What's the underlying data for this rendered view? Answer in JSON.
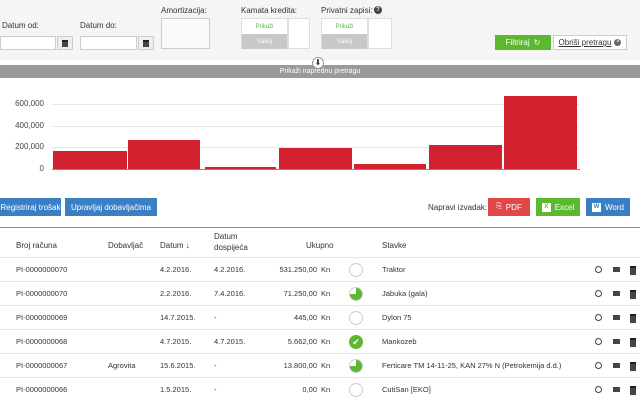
{
  "filters": {
    "date_from_label": "Datum od:",
    "date_to_label": "Datum do:",
    "amortization_label": "Amortizacija:",
    "interest_label": "Kamata kredita:",
    "private_label": "Privatni zapisi:",
    "show": "Prikaži",
    "hide": "Sakrij",
    "filter_button": "Filtriraj",
    "clear_button": "Obriši pretragu",
    "advanced_search": "Prikaži naprednu pretragu"
  },
  "chart_data": {
    "type": "bar",
    "yticks": [
      "600,000",
      "400,000",
      "200,000",
      "0"
    ],
    "ylim": [
      0,
      700000
    ],
    "values": [
      150000,
      238000,
      18000,
      168000,
      38000,
      195000,
      598000
    ]
  },
  "toolbar": {
    "register_cost": "Registriraj trošak",
    "manage_suppliers": "Upravljaj dobavljačima",
    "export_label": "Napravi izvadak:",
    "pdf": "PDF",
    "excel": "Excel",
    "word": "Word",
    "accent_green": "#5cb82e",
    "accent_blue": "#3a7fc4",
    "accent_red": "#e04848"
  },
  "table": {
    "headers": {
      "invoice_no": "Broj računa",
      "supplier": "Dobavljač",
      "date": "Datum ↓",
      "due_date_1": "Datum",
      "due_date_2": "dospijeća",
      "total": "Ukupno",
      "items": "Stavke"
    },
    "rows": [
      {
        "invoice": "PI-0000000070",
        "supplier": "",
        "date": "4.2.2016.",
        "due": "4.2.2016.",
        "amount": "531.250,00",
        "currency": "Kn",
        "paid": 0,
        "items": "Traktor"
      },
      {
        "invoice": "PI-0000000070",
        "supplier": "",
        "date": "2.2.2016.",
        "due": "7.4.2016.",
        "amount": "71.250,00",
        "currency": "Kn",
        "paid": 0.75,
        "items": "Jabuka (gala)"
      },
      {
        "invoice": "PI-0000000069",
        "supplier": "",
        "date": "14.7.2015.",
        "due": "-",
        "amount": "445,00",
        "currency": "Kn",
        "paid": 0,
        "items": "Dylon 75"
      },
      {
        "invoice": "PI-0000000068",
        "supplier": "",
        "date": "4.7.2015.",
        "due": "4.7.2015.",
        "amount": "5.662,00",
        "currency": "Kn",
        "paid": 1,
        "items": "Mankozeb"
      },
      {
        "invoice": "PI-0000000067",
        "supplier": "Agrovita",
        "date": "15.6.2015.",
        "due": "-",
        "amount": "13.800,00",
        "currency": "Kn",
        "paid": 0.75,
        "items": "Ferticare TM 14-11-25, KAN 27% N (Petrokemija d.d.)"
      },
      {
        "invoice": "PI-0000000066",
        "supplier": "",
        "date": "1.5.2015.",
        "due": "-",
        "amount": "0,00",
        "currency": "Kn",
        "paid": 0,
        "items": "CutiSan [EKO]"
      }
    ]
  }
}
